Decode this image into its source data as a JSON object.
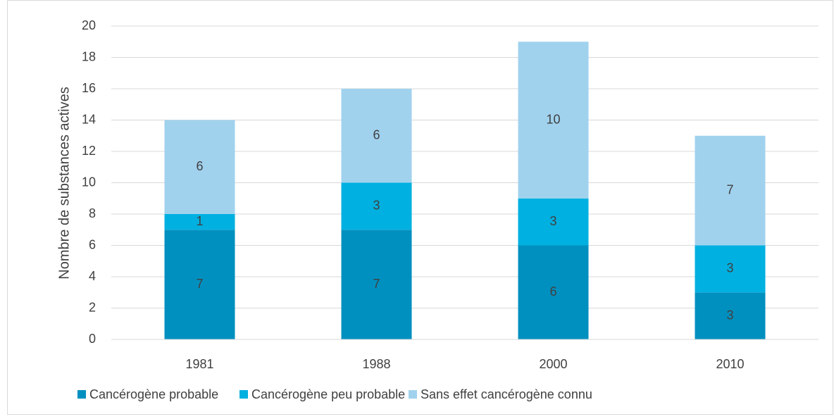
{
  "chart_data": {
    "type": "stacked_bar",
    "y_label": "Nombre de substances actives",
    "categories": [
      "1981",
      "1988",
      "2000",
      "2010"
    ],
    "series": [
      {
        "name": "Cancérogène probable",
        "color": "#0090bf",
        "values": [
          7,
          7,
          6,
          3
        ]
      },
      {
        "name": "Cancérogène peu probable",
        "color": "#00b0e0",
        "values": [
          1,
          3,
          3,
          3
        ]
      },
      {
        "name": "Sans effet cancérogène connu",
        "color": "#a0d2ee",
        "values": [
          6,
          6,
          10,
          7
        ]
      }
    ],
    "ylim": [
      0,
      20
    ],
    "yticks": [
      0,
      2,
      4,
      6,
      8,
      10,
      12,
      14,
      16,
      18,
      20
    ],
    "grid": true,
    "legend": "bottom"
  }
}
